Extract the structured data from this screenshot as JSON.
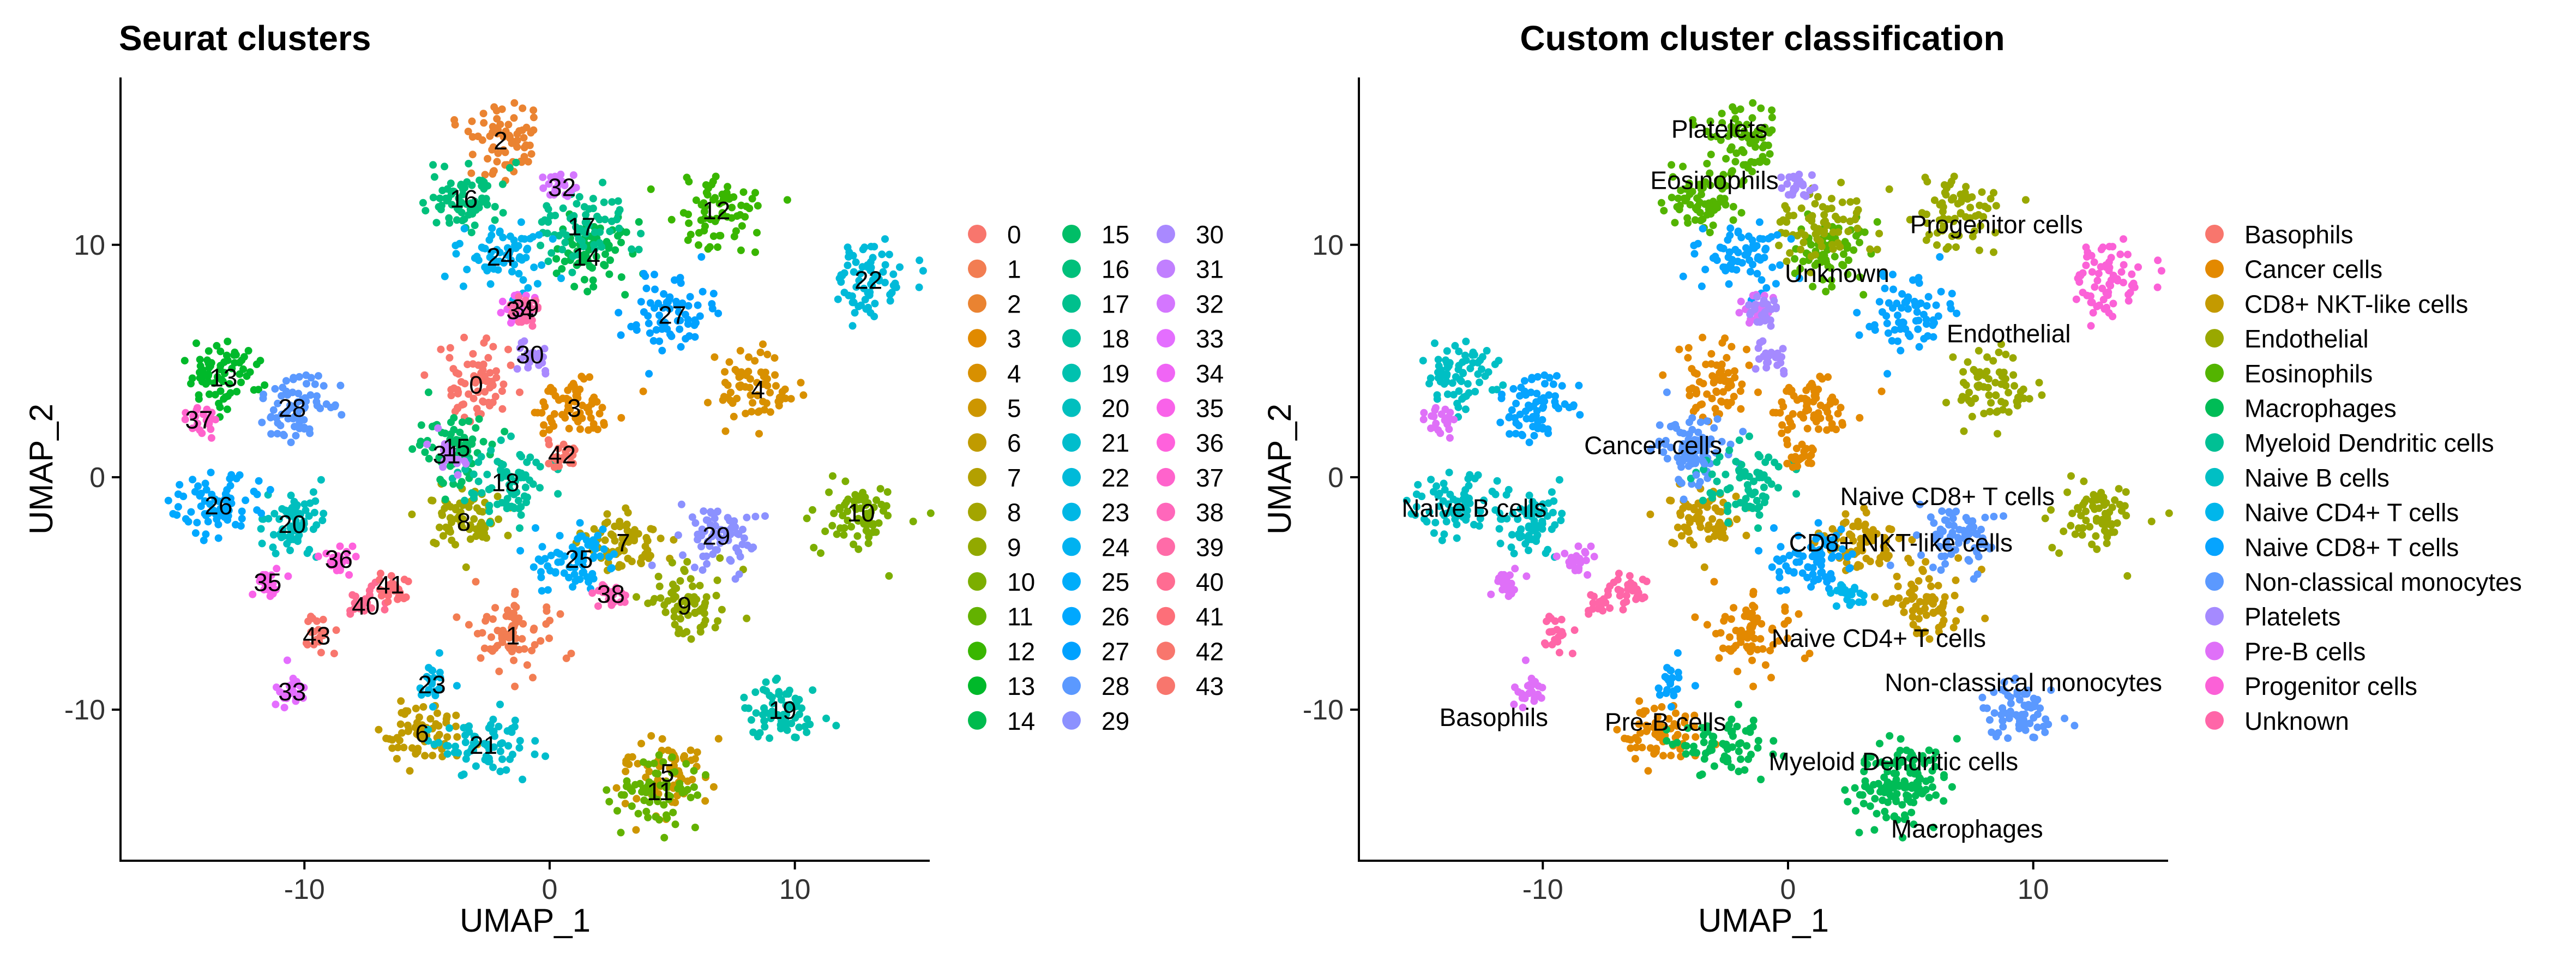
{
  "chart_data": [
    {
      "type": "scatter",
      "title": "Seurat clusters",
      "xlabel": "UMAP_1",
      "ylabel": "UMAP_2",
      "xlim": [
        -17.5,
        15.5
      ],
      "ylim": [
        -16.5,
        17.2
      ],
      "xticks": [
        -10,
        0,
        10
      ],
      "yticks": [
        -10,
        0,
        10
      ],
      "xtick_labels": [
        "-10",
        "0",
        "10"
      ],
      "ytick_labels": [
        "-10",
        "0",
        "10"
      ],
      "grid": false,
      "legend_position": "right",
      "legend_columns": 3,
      "legend_entries": [
        "0",
        "1",
        "2",
        "3",
        "4",
        "5",
        "6",
        "7",
        "8",
        "9",
        "10",
        "11",
        "12",
        "13",
        "14",
        "15",
        "16",
        "17",
        "18",
        "19",
        "20",
        "21",
        "22",
        "23",
        "24",
        "25",
        "26",
        "27",
        "28",
        "29",
        "30",
        "31",
        "32",
        "33",
        "34",
        "35",
        "36",
        "37",
        "38",
        "39",
        "40",
        "41",
        "42",
        "43"
      ],
      "legend_colors": [
        "#F8766D",
        "#F27D52",
        "#EA8331",
        "#E18A00",
        "#D89000",
        "#CD9600",
        "#C09B00",
        "#B3A000",
        "#A3A500",
        "#92A900",
        "#7CAE00",
        "#63B200",
        "#39B600",
        "#00B92A",
        "#00BB4E",
        "#00BE67",
        "#00C07B",
        "#00C08D",
        "#00C19F",
        "#00C1AF",
        "#00BFBE",
        "#00BDCC",
        "#00BAD9",
        "#00B7E5",
        "#00B2F0",
        "#00ADFA",
        "#00A8FF",
        "#00A1FF",
        "#5B99FF",
        "#8C91FF",
        "#A989FF",
        "#C17FFF",
        "#D476FF",
        "#E46EFF",
        "#F065F5",
        "#F962E9",
        "#FF61DC",
        "#FF63CC",
        "#FF67BB",
        "#FF6BA8",
        "#FF6C92",
        "#FD6F79",
        "#F8766D",
        "#F8766D"
      ],
      "cluster_centroids": [
        {
          "label": "0",
          "x": -3,
          "y": 4
        },
        {
          "label": "1",
          "x": -1.5,
          "y": -6.8
        },
        {
          "label": "2",
          "x": -2,
          "y": 14.5
        },
        {
          "label": "3",
          "x": 1,
          "y": 3
        },
        {
          "label": "4",
          "x": 8.5,
          "y": 3.8
        },
        {
          "label": "5",
          "x": 4.8,
          "y": -12.7
        },
        {
          "label": "6",
          "x": -5.2,
          "y": -11
        },
        {
          "label": "7",
          "x": 3,
          "y": -2.8
        },
        {
          "label": "8",
          "x": -3.5,
          "y": -1.9
        },
        {
          "label": "9",
          "x": 5.5,
          "y": -5.5
        },
        {
          "label": "10",
          "x": 12.7,
          "y": -1.5
        },
        {
          "label": "11",
          "x": 4.5,
          "y": -13.5
        },
        {
          "label": "12",
          "x": 6.8,
          "y": 11.5
        },
        {
          "label": "13",
          "x": -13.3,
          "y": 4.3
        },
        {
          "label": "14",
          "x": 1.5,
          "y": 9.5
        },
        {
          "label": "15",
          "x": -3.8,
          "y": 1.3
        },
        {
          "label": "16",
          "x": -3.5,
          "y": 12
        },
        {
          "label": "17",
          "x": 1.3,
          "y": 10.8
        },
        {
          "label": "18",
          "x": -1.8,
          "y": -0.2
        },
        {
          "label": "19",
          "x": 9.5,
          "y": -10
        },
        {
          "label": "20",
          "x": -10.5,
          "y": -2
        },
        {
          "label": "21",
          "x": -2.7,
          "y": -11.5
        },
        {
          "label": "22",
          "x": 13,
          "y": 8.5
        },
        {
          "label": "23",
          "x": -4.8,
          "y": -8.9
        },
        {
          "label": "24",
          "x": -2,
          "y": 9.5
        },
        {
          "label": "25",
          "x": 1.2,
          "y": -3.5
        },
        {
          "label": "26",
          "x": -13.5,
          "y": -1.2
        },
        {
          "label": "27",
          "x": 5,
          "y": 7
        },
        {
          "label": "28",
          "x": -10.5,
          "y": 3
        },
        {
          "label": "29",
          "x": 6.8,
          "y": -2.5
        },
        {
          "label": "30",
          "x": -0.8,
          "y": 5.3
        },
        {
          "label": "31",
          "x": -4.2,
          "y": 1
        },
        {
          "label": "32",
          "x": 0.5,
          "y": 12.5
        },
        {
          "label": "33",
          "x": -10.5,
          "y": -9.2
        },
        {
          "label": "34",
          "x": -1.2,
          "y": 7.2
        },
        {
          "label": "35",
          "x": -11.5,
          "y": -4.5
        },
        {
          "label": "36",
          "x": -8.6,
          "y": -3.5
        },
        {
          "label": "37",
          "x": -14.3,
          "y": 2.5
        },
        {
          "label": "38",
          "x": 2.5,
          "y": -5
        },
        {
          "label": "39",
          "x": -1,
          "y": 7.3
        },
        {
          "label": "40",
          "x": -7.5,
          "y": -5.5
        },
        {
          "label": "41",
          "x": -6.5,
          "y": -4.6
        },
        {
          "label": "42",
          "x": 0.5,
          "y": 1
        },
        {
          "label": "43",
          "x": -9.5,
          "y": -6.8
        }
      ]
    },
    {
      "type": "scatter",
      "title": "Custom cluster classification",
      "xlabel": "UMAP_1",
      "ylabel": "UMAP_2",
      "xlim": [
        -17.5,
        15.5
      ],
      "ylim": [
        -16.5,
        17.2
      ],
      "xticks": [
        -10,
        0,
        10
      ],
      "yticks": [
        -10,
        0,
        10
      ],
      "xtick_labels": [
        "-10",
        "0",
        "10"
      ],
      "ytick_labels": [
        "-10",
        "0",
        "10"
      ],
      "grid": false,
      "legend_position": "right",
      "legend_columns": 1,
      "legend_entries": [
        "Basophils",
        "Cancer cells",
        "CD8+ NKT-like cells",
        "Endothelial",
        "Eosinophils",
        "Macrophages",
        "Myeloid Dendritic cells",
        "Naive B cells",
        "Naive CD4+ T cells",
        "Naive CD8+ T cells",
        "Non-classical monocytes",
        "Platelets",
        "Pre-B cells",
        "Progenitor cells",
        "Unknown"
      ],
      "legend_colors": [
        "#F8766D",
        "#E38900",
        "#C49A00",
        "#99A800",
        "#53B400",
        "#00BC56",
        "#00C094",
        "#00BFC4",
        "#00B6EB",
        "#06A4FF",
        "#5B99FF",
        "#A58AFF",
        "#DF70F8",
        "#FB61D7",
        "#FF66A8"
      ],
      "annotations": [
        {
          "label": "Platelets",
          "x": -2.8,
          "y": 15
        },
        {
          "label": "Eosinophils",
          "x": -3,
          "y": 12.8
        },
        {
          "label": "Progenitor cells",
          "x": 8.5,
          "y": 10.9
        },
        {
          "label": "Unknown",
          "x": 2,
          "y": 8.8
        },
        {
          "label": "Endothelial",
          "x": 9,
          "y": 6.2
        },
        {
          "label": "Cancer cells",
          "x": -5.5,
          "y": 1.4
        },
        {
          "label": "Naive CD8+ T cells",
          "x": 6.5,
          "y": -0.8
        },
        {
          "label": "Naive B cells",
          "x": -12.8,
          "y": -1.3
        },
        {
          "label": "CD8+ NKT-like cells",
          "x": 4.6,
          "y": -2.8
        },
        {
          "label": "Naive CD4+ T cells",
          "x": 3.7,
          "y": -6.9
        },
        {
          "label": "Non-classical monocytes",
          "x": 9.6,
          "y": -8.8
        },
        {
          "label": "Basophils",
          "x": -12,
          "y": -10.3
        },
        {
          "label": "Pre-B cells",
          "x": -5,
          "y": -10.5
        },
        {
          "label": "Myeloid Dendritic cells",
          "x": 4.3,
          "y": -12.2
        },
        {
          "label": "Macrophages",
          "x": 7.3,
          "y": -15.1
        }
      ]
    }
  ]
}
